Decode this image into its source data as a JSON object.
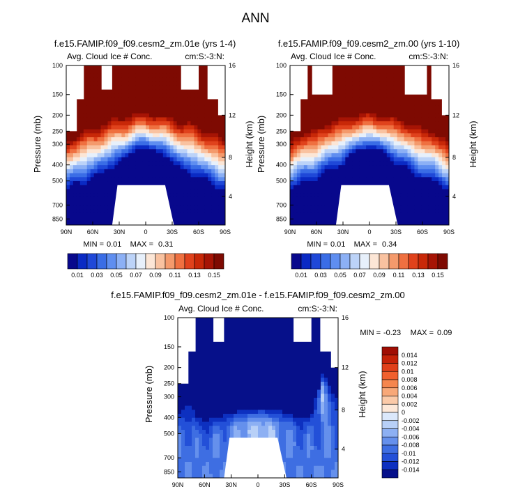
{
  "figure_title": "ANN",
  "colors": {
    "frame": "#000000",
    "background": "#ffffff",
    "mask_fill": "#ffffff"
  },
  "chart_data": [
    {
      "type": "heatmap",
      "id": "panel-a",
      "title": "f.e15.FAMIP.f09_f09.cesm2_zm.01e (yrs 1-4)",
      "subtitle_left": "Avg. Cloud Ice # Conc.",
      "subtitle_right": "cm:S:-3:N:",
      "ylabel": "Pressure (mb)",
      "ylabel_right": "Height (km)",
      "xticks": [
        "90N",
        "60N",
        "30N",
        "0",
        "30S",
        "60S",
        "90S"
      ],
      "yticks_pressure": [
        "100",
        "150",
        "200",
        "250",
        "300",
        "400",
        "500",
        "700",
        "850"
      ],
      "yticks_height": [
        "16",
        "12",
        "8",
        "4"
      ],
      "min_label": "MIN =",
      "min_value": "0.01",
      "max_label": "MAX =",
      "max_value": "0.31",
      "colorbar_ticks": [
        "0.01",
        "0.03",
        "0.05",
        "0.07",
        "0.09",
        "0.11",
        "0.13",
        "0.15"
      ],
      "colorbar_colors": [
        "#08088c",
        "#0a2ac4",
        "#1f48d8",
        "#3a6de6",
        "#5f8ef0",
        "#8cb0f5",
        "#bcd3f8",
        "#e7f0fb",
        "#fce6d6",
        "#f9c2a0",
        "#f49a6c",
        "#ef7040",
        "#e0421c",
        "#c82808",
        "#a61405",
        "#7e0a02"
      ],
      "field": "ice",
      "peaks": [
        [
          -5,
          420,
          0.0
        ]
      ]
    },
    {
      "type": "heatmap",
      "id": "panel-b",
      "title": "f.e15.FAMIP.f09_f09.cesm2_zm.00 (yrs 1-10)",
      "subtitle_left": "Avg. Cloud Ice # Conc.",
      "subtitle_right": "cm:S:-3:N:",
      "ylabel": "Pressure (mb)",
      "ylabel_right": "Height (km)",
      "xticks": [
        "90N",
        "60N",
        "30N",
        "0",
        "30S",
        "60S",
        "90S"
      ],
      "yticks_pressure": [
        "100",
        "150",
        "200",
        "250",
        "300",
        "400",
        "500",
        "700",
        "850"
      ],
      "yticks_height": [
        "16",
        "12",
        "8",
        "4"
      ],
      "min_label": "MIN =",
      "min_value": "0.01",
      "max_label": "MAX =",
      "max_value": "0.34",
      "colorbar_ticks": [
        "0.01",
        "0.03",
        "0.05",
        "0.07",
        "0.09",
        "0.11",
        "0.13",
        "0.15"
      ],
      "colorbar_colors": [
        "#08088c",
        "#0a2ac4",
        "#1f48d8",
        "#3a6de6",
        "#5f8ef0",
        "#8cb0f5",
        "#bcd3f8",
        "#e7f0fb",
        "#fce6d6",
        "#f9c2a0",
        "#f49a6c",
        "#ef7040",
        "#e0421c",
        "#c82808",
        "#a61405",
        "#7e0a02"
      ],
      "field": "ice"
    },
    {
      "type": "heatmap",
      "id": "panel-c",
      "title": "f.e15.FAMIP.f09_f09.cesm2_zm.01e - f.e15.FAMIP.f09_f09.cesm2_zm.00",
      "subtitle_left": "Avg. Cloud Ice # Conc.",
      "subtitle_right": "cm:S:-3:N:",
      "ylabel": "Pressure (mb)",
      "ylabel_right": "Height (km)",
      "xticks": [
        "90N",
        "60N",
        "30N",
        "0",
        "30S",
        "60S",
        "90S"
      ],
      "yticks_pressure": [
        "100",
        "150",
        "200",
        "250",
        "300",
        "400",
        "500",
        "700",
        "850"
      ],
      "yticks_height": [
        "16",
        "12",
        "8",
        "4"
      ],
      "min_label": "MIN =",
      "min_value": "-0.23",
      "max_label": "MAX =",
      "max_value": "0.09",
      "colorbar_ticks": [
        "0.014",
        "0.012",
        "0.01",
        "0.008",
        "0.006",
        "0.004",
        "0.002",
        "0",
        "-0.002",
        "-0.004",
        "-0.006",
        "-0.008",
        "-0.01",
        "-0.012",
        "-0.014"
      ],
      "colorbar_colors": [
        "#a00e04",
        "#c42208",
        "#e0401a",
        "#f0602e",
        "#f5864e",
        "#f8a878",
        "#fbcaa8",
        "#fde8d8",
        "#dbe8fb",
        "#b8d0f7",
        "#8db0f3",
        "#6590ec",
        "#3e6ee2",
        "#2350d8",
        "#0d30c0",
        "#06108a"
      ],
      "field": "diff"
    }
  ]
}
